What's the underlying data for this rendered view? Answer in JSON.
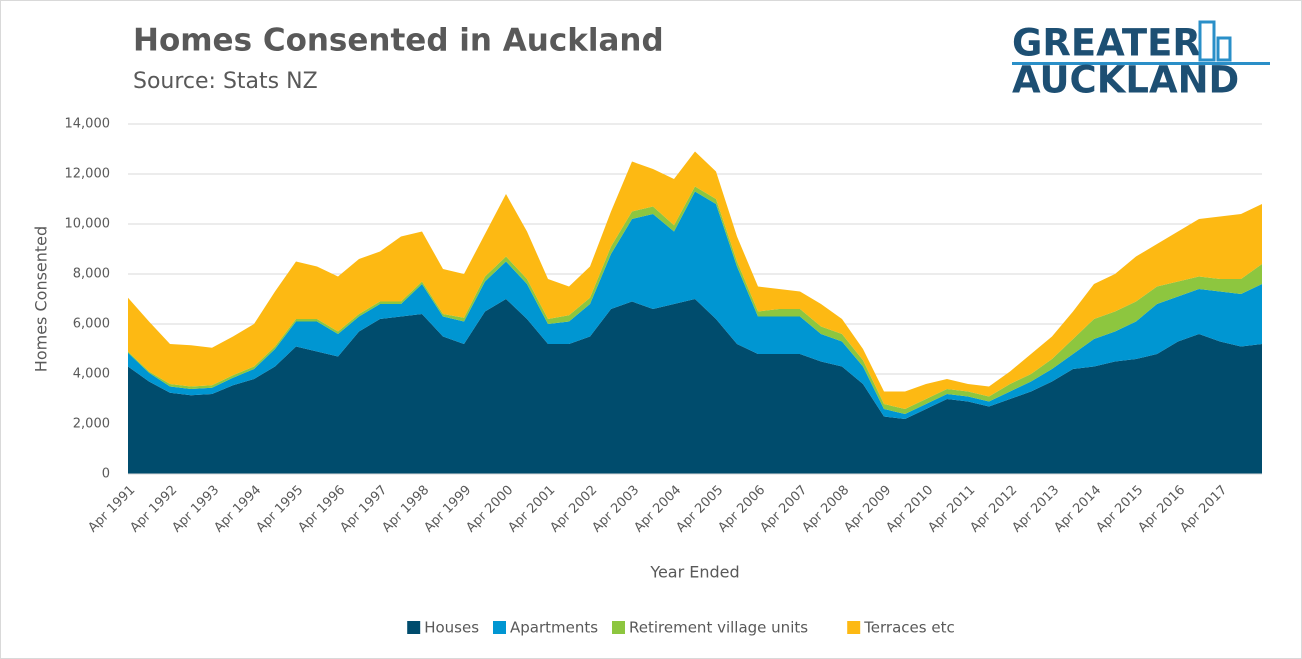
{
  "chart_data": {
    "type": "stacked_area",
    "title": "Homes Consented in Auckland",
    "subtitle": "Source: Stats NZ",
    "logo": [
      "GREATER",
      "AUCKLAND"
    ],
    "x_label": "Year Ended",
    "y_label": "Homes Consented",
    "categories": [
      "Apr 1991",
      null,
      "Apr 1992",
      null,
      "Apr 1993",
      null,
      "Apr 1994",
      null,
      "Apr 1995",
      null,
      "Apr 1996",
      null,
      "Apr 1997",
      null,
      "Apr 1998",
      null,
      "Apr 1999",
      null,
      "Apr 2000",
      null,
      "Apr 2001",
      null,
      "Apr 2002",
      null,
      "Apr 2003",
      null,
      "Apr 2004",
      null,
      "Apr 2005",
      null,
      "Apr 2006",
      null,
      "Apr 2007",
      null,
      "Apr 2008",
      null,
      "Apr 2009",
      null,
      "Apr 2010",
      null,
      "Apr 2011",
      null,
      "Apr 2012",
      null,
      "Apr 2013",
      null,
      "Apr 2014",
      null,
      "Apr 2015",
      null,
      "Apr 2016",
      null,
      "Apr 2017",
      null,
      null
    ],
    "series": [
      {
        "name": "Houses",
        "color": "#004c6d",
        "values": [
          4300,
          3700,
          3250,
          3150,
          3200,
          3550,
          3800,
          4300,
          5100,
          4900,
          4700,
          5700,
          6200,
          6300,
          6400,
          5500,
          5200,
          6500,
          7000,
          6200,
          5200,
          5200,
          5500,
          6600,
          6900,
          6600,
          6800,
          7000,
          6200,
          5200,
          4800,
          4800,
          4800,
          4500,
          4300,
          3600,
          2300,
          2200,
          2600,
          3000,
          2900,
          2700,
          3000,
          3300,
          3700,
          4200,
          4300,
          4500,
          4600,
          4800,
          5300,
          5600,
          5300,
          5100,
          5200
        ]
      },
      {
        "name": "Apartments",
        "color": "#0096d2",
        "values": [
          550,
          350,
          250,
          250,
          250,
          300,
          400,
          700,
          1000,
          1200,
          900,
          600,
          600,
          500,
          1200,
          800,
          900,
          1200,
          1500,
          1400,
          800,
          900,
          1300,
          2200,
          3300,
          3800,
          2900,
          4300,
          4600,
          3100,
          1500,
          1500,
          1500,
          1100,
          1000,
          700,
          300,
          200,
          200,
          200,
          200,
          200,
          300,
          400,
          500,
          600,
          1100,
          1200,
          1500,
          2000,
          1800,
          1800,
          2000,
          2100,
          2400
        ]
      },
      {
        "name": "Retirement village units",
        "color": "#8dc63f",
        "values": [
          50,
          50,
          100,
          100,
          100,
          100,
          100,
          100,
          100,
          100,
          100,
          100,
          100,
          100,
          100,
          100,
          150,
          200,
          200,
          200,
          200,
          250,
          250,
          300,
          300,
          300,
          250,
          200,
          200,
          200,
          200,
          300,
          300,
          300,
          300,
          250,
          200,
          200,
          200,
          200,
          200,
          200,
          300,
          300,
          400,
          600,
          800,
          800,
          800,
          700,
          600,
          500,
          500,
          600,
          800
        ]
      },
      {
        "name": "Terraces etc",
        "color": "#fdb913",
        "values": [
          2150,
          2000,
          1600,
          1650,
          1500,
          1550,
          1700,
          2200,
          2300,
          2100,
          2200,
          2200,
          2000,
          2600,
          2000,
          1800,
          1750,
          1700,
          2500,
          1900,
          1600,
          1150,
          1250,
          1400,
          2000,
          1500,
          1850,
          1400,
          1100,
          1000,
          1000,
          800,
          700,
          900,
          600,
          450,
          500,
          700,
          600,
          400,
          300,
          400,
          500,
          800,
          900,
          1100,
          1400,
          1500,
          1800,
          1700,
          2000,
          2300,
          2500,
          2600,
          2400
        ]
      }
    ],
    "ylim": [
      0,
      14000
    ],
    "yticks": [
      0,
      {
        "value": 2000,
        "label": "2,000"
      },
      {
        "value": 4000,
        "label": "4,000"
      },
      {
        "value": 6000,
        "label": "6,000"
      },
      {
        "value": 8000,
        "label": "8,000"
      },
      {
        "value": 10000,
        "label": "10,000"
      },
      {
        "value": 12000,
        "label": "12,000"
      },
      {
        "value": 14000,
        "label": "14,000"
      }
    ],
    "grid": true,
    "legend": "bottom"
  }
}
